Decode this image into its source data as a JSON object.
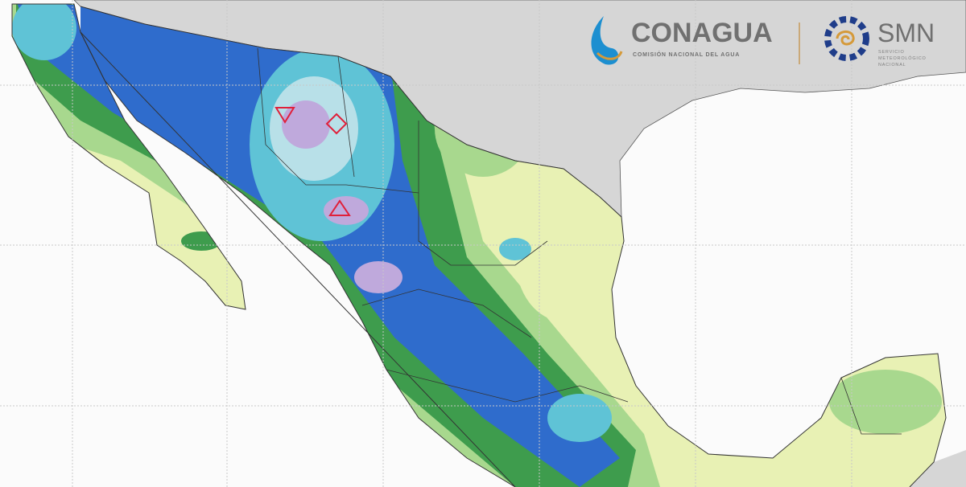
{
  "header": {
    "conagua": {
      "name": "CONAGUA",
      "subtitle": "COMISIÓN NACIONAL DEL AGUA"
    },
    "smn": {
      "name": "SMN",
      "subtitle": [
        "SERVICIO",
        "METEOROLÓGICO",
        "NACIONAL"
      ]
    }
  }
}
